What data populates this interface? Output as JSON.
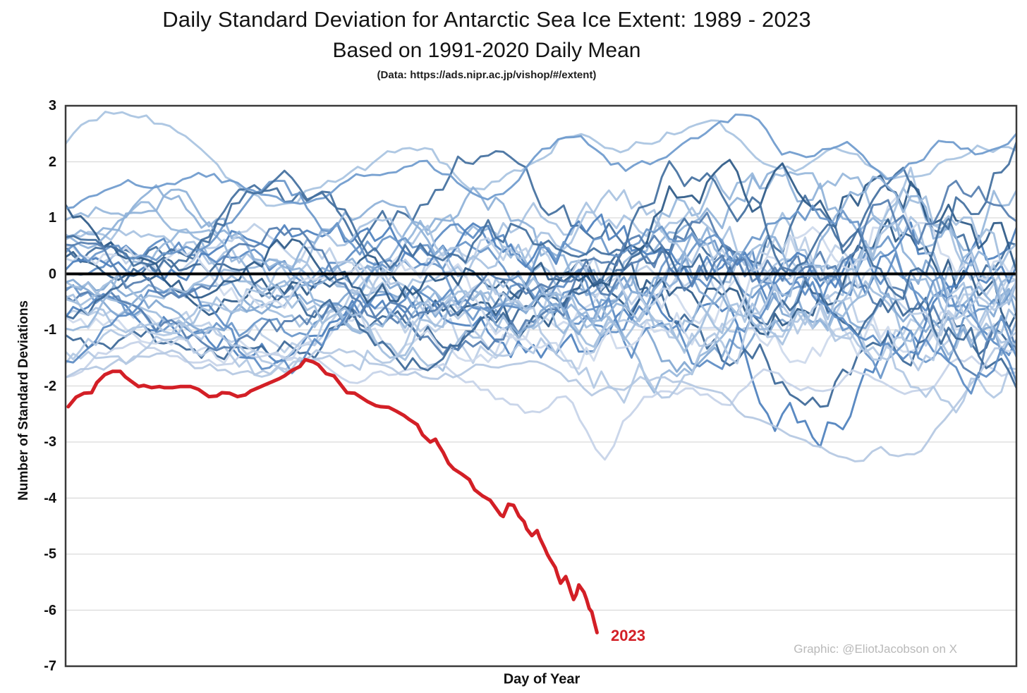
{
  "header": {
    "title": "Daily Standard Deviation for Antarctic Sea Ice Extent: 1989 - 2023",
    "subtitle": "Based on 1991-2020 Daily Mean",
    "source": "(Data: https://ads.nipr.ac.jp/vishop/#/extent)"
  },
  "chart_data": {
    "type": "line",
    "title": "Daily Standard Deviation for Antarctic Sea Ice Extent: 1989 - 2023",
    "subtitle": "Based on 1991-2020 Daily Mean",
    "xlabel": "Day of Year",
    "ylabel": "Number of Standard Deviations",
    "x_range": [
      0,
      365
    ],
    "ylim": [
      -7,
      3
    ],
    "yticks": [
      3,
      2,
      1,
      0,
      -1,
      -2,
      -3,
      -4,
      -5,
      -6,
      -7
    ],
    "grid": true,
    "gridline_color": "#d9d9d9",
    "zero_line_color": "#000000",
    "plot_border_color": "#3a3a3a",
    "watermark": "Graphic: @EliotJacobson on X",
    "highlight_series": {
      "name": "2023",
      "label": "2023",
      "color": "#d31f26",
      "points": [
        [
          1,
          -2.37
        ],
        [
          4,
          -2.2
        ],
        [
          7,
          -2.13
        ],
        [
          10,
          -2.12
        ],
        [
          12,
          -1.94
        ],
        [
          15,
          -1.8
        ],
        [
          18,
          -1.74
        ],
        [
          21,
          -1.74
        ],
        [
          23,
          -1.84
        ],
        [
          25,
          -1.91
        ],
        [
          28,
          -2.01
        ],
        [
          30,
          -1.99
        ],
        [
          33,
          -2.03
        ],
        [
          36,
          -2.01
        ],
        [
          38,
          -2.03
        ],
        [
          41,
          -2.03
        ],
        [
          44,
          -2.01
        ],
        [
          48,
          -2.01
        ],
        [
          51,
          -2.06
        ],
        [
          55,
          -2.19
        ],
        [
          58,
          -2.18
        ],
        [
          60,
          -2.12
        ],
        [
          63,
          -2.13
        ],
        [
          66,
          -2.19
        ],
        [
          69,
          -2.16
        ],
        [
          71,
          -2.09
        ],
        [
          74,
          -2.03
        ],
        [
          76,
          -1.99
        ],
        [
          79,
          -1.93
        ],
        [
          82,
          -1.87
        ],
        [
          84,
          -1.82
        ],
        [
          87,
          -1.72
        ],
        [
          90,
          -1.65
        ],
        [
          92,
          -1.53
        ],
        [
          95,
          -1.57
        ],
        [
          97,
          -1.62
        ],
        [
          100,
          -1.78
        ],
        [
          103,
          -1.82
        ],
        [
          105,
          -1.94
        ],
        [
          108,
          -2.12
        ],
        [
          111,
          -2.13
        ],
        [
          113,
          -2.19
        ],
        [
          116,
          -2.28
        ],
        [
          119,
          -2.35
        ],
        [
          121,
          -2.37
        ],
        [
          124,
          -2.38
        ],
        [
          127,
          -2.45
        ],
        [
          130,
          -2.53
        ],
        [
          132,
          -2.6
        ],
        [
          135,
          -2.69
        ],
        [
          137,
          -2.87
        ],
        [
          140,
          -3.0
        ],
        [
          142,
          -2.95
        ],
        [
          143,
          -3.04
        ],
        [
          145,
          -3.19
        ],
        [
          147,
          -3.38
        ],
        [
          149,
          -3.48
        ],
        [
          152,
          -3.57
        ],
        [
          155,
          -3.67
        ],
        [
          157,
          -3.85
        ],
        [
          160,
          -3.96
        ],
        [
          163,
          -4.04
        ],
        [
          165,
          -4.17
        ],
        [
          167,
          -4.3
        ],
        [
          168,
          -4.33
        ],
        [
          170,
          -4.11
        ],
        [
          172,
          -4.13
        ],
        [
          174,
          -4.32
        ],
        [
          176,
          -4.42
        ],
        [
          177,
          -4.55
        ],
        [
          179,
          -4.67
        ],
        [
          181,
          -4.58
        ],
        [
          182,
          -4.71
        ],
        [
          184,
          -4.9
        ],
        [
          185,
          -5.01
        ],
        [
          186,
          -5.09
        ],
        [
          188,
          -5.24
        ],
        [
          189,
          -5.39
        ],
        [
          190,
          -5.52
        ],
        [
          192,
          -5.4
        ],
        [
          193,
          -5.53
        ],
        [
          194,
          -5.68
        ],
        [
          195,
          -5.81
        ],
        [
          196,
          -5.72
        ],
        [
          197,
          -5.55
        ],
        [
          199,
          -5.68
        ],
        [
          200,
          -5.81
        ],
        [
          201,
          -5.97
        ],
        [
          202,
          -6.03
        ],
        [
          203,
          -6.22
        ],
        [
          204,
          -6.4
        ]
      ]
    },
    "background_series": {
      "years_range": "1989-2022",
      "count": 34,
      "procedural_approximation": true,
      "value_envelope": [
        -3.5,
        2.9
      ],
      "seed": 420123,
      "center_spread": 1.05,
      "anchor_spread": 0.85,
      "anchor_growth": 0.55,
      "noise_base": 0.16,
      "noise_growth": 0.26,
      "palette": [
        "#82a8d2",
        "#bccfe6",
        "#4f81bd",
        "#98b8db",
        "#3c6898",
        "#a9c3e1",
        "#5d8cc4",
        "#cdd9ec",
        "#2e5a88",
        "#8fb1d8",
        "#6b97c9",
        "#a3bede",
        "#44709f",
        "#b3c8e3",
        "#567fb0"
      ],
      "feature_lines": [
        {
          "name": "high-start-year",
          "color": "#a9c4e1",
          "anchors": [
            [
              0,
              2.3
            ],
            [
              12,
              2.78
            ],
            [
              25,
              2.85
            ],
            [
              40,
              2.55
            ],
            [
              55,
              2.15
            ],
            [
              68,
              1.45
            ],
            [
              80,
              1.15
            ],
            [
              95,
              1.55
            ],
            [
              115,
              1.85
            ],
            [
              135,
              2.15
            ],
            [
              155,
              1.65
            ],
            [
              175,
              1.95
            ],
            [
              195,
              2.55
            ],
            [
              210,
              2.15
            ],
            [
              228,
              2.45
            ],
            [
              245,
              2.62
            ],
            [
              262,
              2.3
            ],
            [
              280,
              1.85
            ],
            [
              298,
              2.15
            ],
            [
              316,
              1.6
            ],
            [
              335,
              1.95
            ],
            [
              350,
              2.35
            ],
            [
              365,
              2.25
            ]
          ]
        },
        {
          "name": "mid-year-deep-dip",
          "color": "#c6d3e8",
          "anchors": [
            [
              0,
              -1.75
            ],
            [
              25,
              -1.25
            ],
            [
              55,
              -1.65
            ],
            [
              85,
              -1.3
            ],
            [
              115,
              -1.75
            ],
            [
              145,
              -1.55
            ],
            [
              165,
              -2.15
            ],
            [
              182,
              -2.55
            ],
            [
              192,
              -2.3
            ],
            [
              200,
              -2.95
            ],
            [
              207,
              -3.52
            ],
            [
              214,
              -2.85
            ],
            [
              222,
              -2.35
            ],
            [
              238,
              -2.05
            ],
            [
              252,
              -2.3
            ],
            [
              268,
              -1.85
            ],
            [
              285,
              -2.1
            ],
            [
              305,
              -1.7
            ],
            [
              325,
              -1.95
            ],
            [
              345,
              -1.5
            ],
            [
              365,
              -1.8
            ]
          ]
        },
        {
          "name": "late-season-dip",
          "color": "#b5c8e2",
          "anchors": [
            [
              0,
              -1.9
            ],
            [
              35,
              -1.45
            ],
            [
              70,
              -1.8
            ],
            [
              105,
              -1.4
            ],
            [
              140,
              -1.85
            ],
            [
              175,
              -1.55
            ],
            [
              205,
              -2.1
            ],
            [
              230,
              -1.85
            ],
            [
              255,
              -2.35
            ],
            [
              275,
              -2.85
            ],
            [
              290,
              -3.05
            ],
            [
              303,
              -3.3
            ],
            [
              313,
              -3.2
            ],
            [
              323,
              -3.32
            ],
            [
              334,
              -2.75
            ],
            [
              344,
              -2.15
            ],
            [
              354,
              -1.55
            ],
            [
              365,
              -1.15
            ]
          ]
        },
        {
          "name": "high-late-year",
          "color": "#6f9bcd",
          "anchors": [
            [
              0,
              1.15
            ],
            [
              45,
              1.75
            ],
            [
              90,
              1.35
            ],
            [
              130,
              1.95
            ],
            [
              165,
              1.55
            ],
            [
              195,
              2.45
            ],
            [
              215,
              1.9
            ],
            [
              240,
              2.2
            ],
            [
              260,
              2.72
            ],
            [
              278,
              2.15
            ],
            [
              300,
              2.4
            ],
            [
              318,
              1.85
            ],
            [
              338,
              2.45
            ],
            [
              352,
              2.2
            ],
            [
              365,
              2.5
            ]
          ]
        }
      ]
    }
  }
}
